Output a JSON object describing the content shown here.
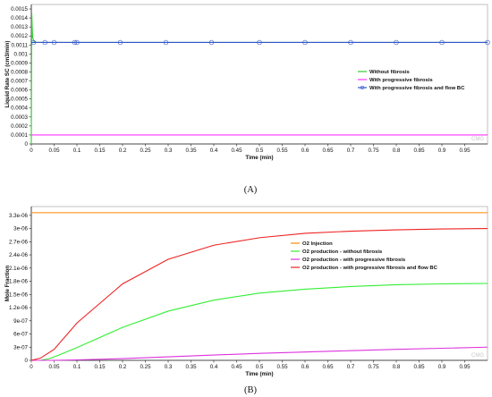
{
  "chart_data": [
    {
      "type": "line",
      "caption": "(A)",
      "xlabel": "Time (min)",
      "ylabel": "Liquid Rate SC (cm3/min)",
      "xlim": [
        0,
        1
      ],
      "ylim": [
        0,
        0.00155
      ],
      "x_ticks": [
        "0",
        "0.05",
        "0.1",
        "0.15",
        "0.2",
        "0.25",
        "0.3",
        "0.35",
        "0.4",
        "0.45",
        "0.5",
        "0.55",
        "0.6",
        "0.65",
        "0.7",
        "0.75",
        "0.8",
        "0.85",
        "0.9",
        "0.95"
      ],
      "x_tick_values": [
        0,
        0.05,
        0.1,
        0.15,
        0.2,
        0.25,
        0.3,
        0.35,
        0.4,
        0.45,
        0.5,
        0.55,
        0.6,
        0.65,
        0.7,
        0.75,
        0.8,
        0.85,
        0.9,
        0.95
      ],
      "y_ticks": [
        "0",
        "0.0001",
        "0.0002",
        "0.0003",
        "0.0004",
        "0.0005",
        "0.0006",
        "0.0007",
        "0.0008",
        "0.0009",
        "0.001",
        "0.0011",
        "0.0012",
        "0.0013",
        "0.0014",
        "0.0015"
      ],
      "y_tick_values": [
        0,
        0.0001,
        0.0002,
        0.0003,
        0.0004,
        0.0005,
        0.0006,
        0.0007,
        0.0008,
        0.0009,
        0.001,
        0.0011,
        0.0012,
        0.0013,
        0.0014,
        0.0015
      ],
      "legend_position": "right",
      "watermark": "CMG",
      "series": [
        {
          "name": "Without fibrosis",
          "color": "#33cc33",
          "marker": "none",
          "x": [
            0,
            0.001,
            0.002,
            0.003,
            0.006,
            0.01,
            0.02,
            0.05,
            0.1,
            0.2,
            0.3,
            0.4,
            0.5,
            0.6,
            0.7,
            0.8,
            0.9,
            1.0
          ],
          "y": [
            0,
            0.00145,
            0.0013,
            0.00118,
            0.00114,
            0.00113,
            0.001128,
            0.001128,
            0.001128,
            0.001128,
            0.001128,
            0.001128,
            0.001128,
            0.001128,
            0.001128,
            0.001128,
            0.001128,
            0.001128
          ]
        },
        {
          "name": "With progressive fibrosis",
          "color": "#ff33ff",
          "marker": "none",
          "x": [
            0,
            1.0
          ],
          "y": [
            0.0001,
            0.0001
          ]
        },
        {
          "name": "With progressive fibrosis and flow BC",
          "color": "#3355cc",
          "marker": "circle",
          "x": [
            0,
            0.01,
            0.02,
            0.05,
            0.1,
            0.2,
            0.3,
            0.4,
            0.5,
            0.6,
            0.7,
            0.8,
            0.9,
            1.0
          ],
          "y": [
            0.001128,
            0.001128,
            0.001128,
            0.001128,
            0.001128,
            0.001128,
            0.001128,
            0.001128,
            0.001128,
            0.001128,
            0.001128,
            0.001128,
            0.001128,
            0.001128
          ],
          "marker_x": [
            0.005,
            0.03,
            0.05,
            0.095,
            0.1,
            0.195,
            0.295,
            0.395,
            0.5,
            0.6,
            0.7,
            0.8,
            0.9,
            1.0
          ]
        }
      ]
    },
    {
      "type": "line",
      "caption": "(B)",
      "xlabel": "Time (min)",
      "ylabel": "Mole Fraction",
      "xlim": [
        0,
        1
      ],
      "ylim": [
        0,
        3.5e-06
      ],
      "x_ticks": [
        "0",
        "0.05",
        "0.1",
        "0.15",
        "0.2",
        "0.25",
        "0.3",
        "0.35",
        "0.4",
        "0.45",
        "0.5",
        "0.55",
        "0.6",
        "0.65",
        "0.7",
        "0.75",
        "0.8",
        "0.85",
        "0.9",
        "0.95"
      ],
      "x_tick_values": [
        0,
        0.05,
        0.1,
        0.15,
        0.2,
        0.25,
        0.3,
        0.35,
        0.4,
        0.45,
        0.5,
        0.55,
        0.6,
        0.65,
        0.7,
        0.75,
        0.8,
        0.85,
        0.9,
        0.95
      ],
      "y_ticks": [
        "0",
        "3e-07",
        "6e-07",
        "9e-07",
        "1.2e-06",
        "1.5e-06",
        "1.8e-06",
        "2.1e-06",
        "2.4e-06",
        "2.7e-06",
        "3e-06",
        "3.3e-06"
      ],
      "y_tick_values": [
        0,
        3e-07,
        6e-07,
        9e-07,
        1.2e-06,
        1.5e-06,
        1.8e-06,
        2.1e-06,
        2.4e-06,
        2.7e-06,
        3e-06,
        3.3e-06
      ],
      "legend_position": "right",
      "watermark": "CMG",
      "series": [
        {
          "name": "O2 Injection",
          "color": "#ff8800",
          "x": [
            0,
            1.0
          ],
          "y": [
            3.36e-06,
            3.36e-06
          ]
        },
        {
          "name": "O2 production - without fibrosis",
          "color": "#33ee33",
          "x": [
            0,
            0.02,
            0.04,
            0.06,
            0.1,
            0.2,
            0.3,
            0.4,
            0.5,
            0.6,
            0.7,
            0.8,
            0.9,
            1.0
          ],
          "y": [
            0,
            0,
            4e-08,
            1.2e-07,
            2.9e-07,
            7.5e-07,
            1.12e-06,
            1.37e-06,
            1.53e-06,
            1.62e-06,
            1.68e-06,
            1.72e-06,
            1.74e-06,
            1.75e-06
          ]
        },
        {
          "name": "O2 production - with progressive fibrosis",
          "color": "#dd33dd",
          "x": [
            0,
            0.05,
            0.1,
            0.2,
            0.3,
            0.4,
            0.5,
            0.6,
            0.7,
            0.8,
            0.9,
            1.0
          ],
          "y": [
            0,
            0,
            1e-08,
            4e-08,
            8e-08,
            1.2e-07,
            1.6e-07,
            1.9e-07,
            2.2e-07,
            2.5e-07,
            2.75e-07,
            3e-07
          ]
        },
        {
          "name": "O2 production - with progressive fibrosis and flow BC",
          "color": "#ee2222",
          "x": [
            0,
            0.02,
            0.05,
            0.1,
            0.2,
            0.3,
            0.4,
            0.5,
            0.6,
            0.7,
            0.8,
            0.9,
            1.0
          ],
          "y": [
            0,
            5e-08,
            2.5e-07,
            8.5e-07,
            1.74e-06,
            2.3e-06,
            2.62e-06,
            2.79e-06,
            2.89e-06,
            2.94e-06,
            2.97e-06,
            2.99e-06,
            3e-06
          ]
        }
      ]
    }
  ]
}
